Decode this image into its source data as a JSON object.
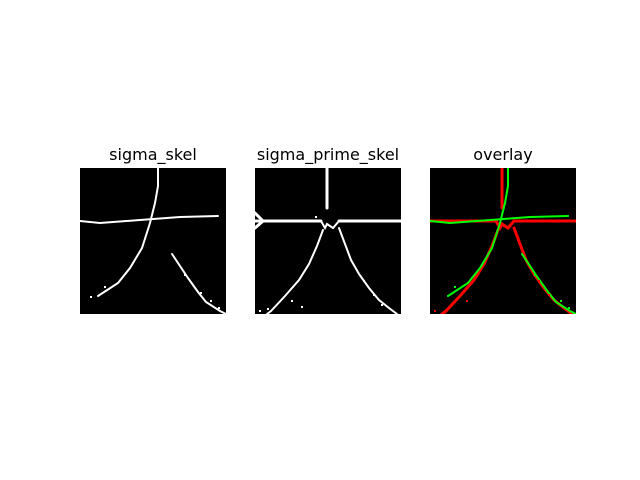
{
  "panels": [
    {
      "title": "sigma_skel"
    },
    {
      "title": "sigma_prime_skel"
    },
    {
      "title": "overlay"
    }
  ],
  "colors": {
    "background": "#000000",
    "skeleton": "#ffffff",
    "overlay_first": "#ff0000",
    "overlay_second": "#00ff00"
  }
}
